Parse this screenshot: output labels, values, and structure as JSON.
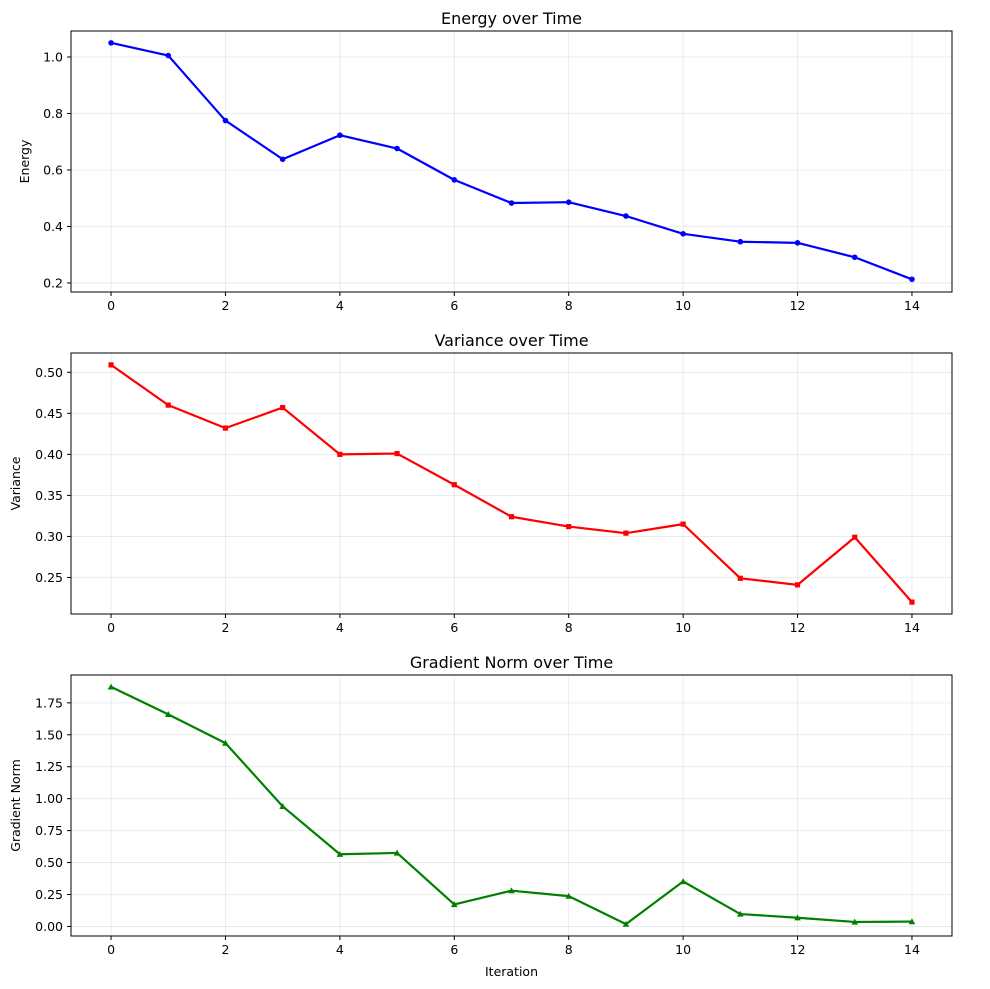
{
  "chart_data": [
    {
      "type": "line",
      "title": "Energy over Time",
      "xlabel": "",
      "ylabel": "Energy",
      "x": [
        0,
        1,
        2,
        3,
        4,
        5,
        6,
        7,
        8,
        9,
        10,
        11,
        12,
        13,
        14
      ],
      "series": [
        {
          "values": [
            1.05,
            1.005,
            0.775,
            0.638,
            0.723,
            0.676,
            0.565,
            0.483,
            0.486,
            0.437,
            0.374,
            0.346,
            0.342,
            0.291,
            0.213
          ],
          "color": "#0000ff",
          "marker": "circle"
        }
      ],
      "xlim": [
        -0.7,
        14.7
      ],
      "ylim": [
        0.168,
        1.092
      ],
      "xticks": [
        "0",
        "2",
        "4",
        "6",
        "8",
        "10",
        "12",
        "14"
      ],
      "yticks": [
        "0.2",
        "0.4",
        "0.6",
        "0.8",
        "1.0"
      ],
      "grid": true
    },
    {
      "type": "line",
      "title": "Variance over Time",
      "xlabel": "",
      "ylabel": "Variance",
      "x": [
        0,
        1,
        2,
        3,
        4,
        5,
        6,
        7,
        8,
        9,
        10,
        11,
        12,
        13,
        14
      ],
      "series": [
        {
          "values": [
            0.509,
            0.46,
            0.432,
            0.457,
            0.4,
            0.401,
            0.363,
            0.324,
            0.312,
            0.304,
            0.315,
            0.249,
            0.241,
            0.299,
            0.22
          ],
          "color": "#ff0000",
          "marker": "square"
        }
      ],
      "xlim": [
        -0.7,
        14.7
      ],
      "ylim": [
        0.2055,
        0.5235
      ],
      "xticks": [
        "0",
        "2",
        "4",
        "6",
        "8",
        "10",
        "12",
        "14"
      ],
      "yticks": [
        "0.25",
        "0.30",
        "0.35",
        "0.40",
        "0.45",
        "0.50"
      ],
      "grid": true
    },
    {
      "type": "line",
      "title": "Gradient Norm over Time",
      "xlabel": "Iteration",
      "ylabel": "Gradient Norm",
      "x": [
        0,
        1,
        2,
        3,
        4,
        5,
        6,
        7,
        8,
        9,
        10,
        11,
        12,
        13,
        14
      ],
      "series": [
        {
          "values": [
            1.875,
            1.66,
            1.435,
            0.94,
            0.565,
            0.575,
            0.172,
            0.28,
            0.237,
            0.018,
            0.352,
            0.097,
            0.068,
            0.035,
            0.038
          ],
          "color": "#008000",
          "marker": "triangle"
        }
      ],
      "xlim": [
        -0.7,
        14.7
      ],
      "ylim": [
        -0.0749,
        1.9679
      ],
      "xticks": [
        "0",
        "2",
        "4",
        "6",
        "8",
        "10",
        "12",
        "14"
      ],
      "yticks": [
        "0.00",
        "0.25",
        "0.50",
        "0.75",
        "1.00",
        "1.25",
        "1.50",
        "1.75"
      ],
      "grid": true
    }
  ]
}
